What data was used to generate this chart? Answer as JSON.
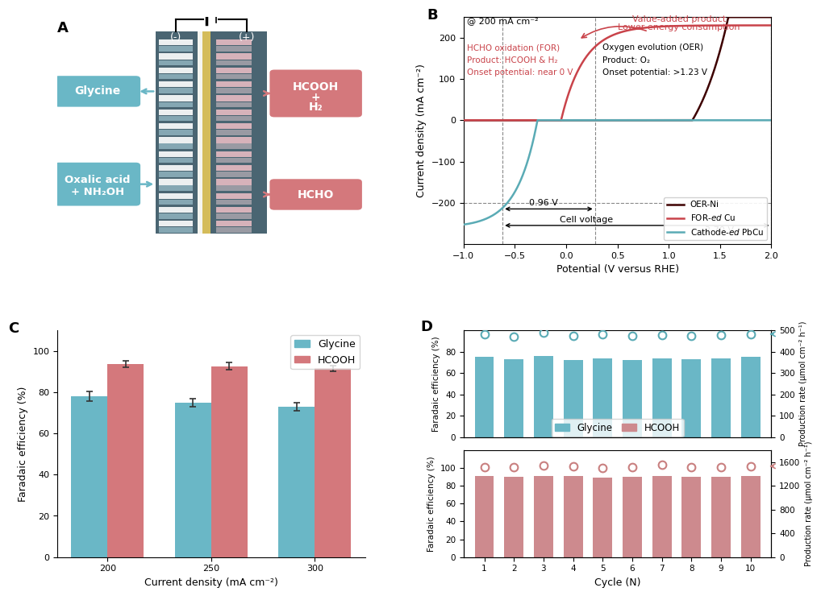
{
  "panel_B": {
    "label": "B",
    "xlim": [
      -1.0,
      2.0
    ],
    "ylim": [
      -300,
      250
    ],
    "xlabel": "Potential (V versus RHE)",
    "ylabel": "Current density (mA cm⁻²)",
    "annotation_200": "@ 200 mA cm⁻²",
    "color_OER": "#3d0000",
    "color_FOR": "#c9434a",
    "color_Cat": "#5aabb5",
    "legend_OER": "OER-Ni",
    "legend_FOR": "FOR-ed Cu",
    "legend_Cat": "Cathode-ed PbCu"
  },
  "panel_C": {
    "label": "C",
    "categories": [
      200,
      250,
      300
    ],
    "glycine_vals": [
      78.0,
      75.0,
      73.0
    ],
    "glycine_errs": [
      2.5,
      2.0,
      2.0
    ],
    "hcooh_vals": [
      93.5,
      92.5,
      91.5
    ],
    "hcooh_errs": [
      1.5,
      1.8,
      1.5
    ],
    "bar_color_glycine": "#6ab7c6",
    "bar_color_hcooh": "#d4787c",
    "xlabel": "Current density (mA cm⁻²)",
    "ylabel": "Faradaic efficiency (%)",
    "ylim": [
      0,
      110
    ],
    "yticks": [
      0,
      20,
      40,
      60,
      80,
      100
    ],
    "legend_glycine": "Glycine",
    "legend_hcooh": "HCOOH"
  },
  "panel_D": {
    "label": "D",
    "cycles": [
      1,
      2,
      3,
      4,
      5,
      6,
      7,
      8,
      9,
      10
    ],
    "glycine_fe": [
      75,
      73,
      76,
      72,
      74,
      72,
      74,
      73,
      74,
      75
    ],
    "glycine_pr": [
      480,
      470,
      490,
      475,
      480,
      472,
      478,
      473,
      479,
      482
    ],
    "hcooh_fe": [
      91,
      90,
      91,
      91,
      89,
      90,
      91,
      90,
      90,
      91
    ],
    "hcooh_pr": [
      1520,
      1510,
      1540,
      1530,
      1500,
      1520,
      1550,
      1520,
      1520,
      1530
    ],
    "bar_color_glycine": "#6ab7c6",
    "bar_color_hcooh": "#cd8a8e",
    "circle_color_glycine": "#5aabb5",
    "circle_color_hcooh": "#c98080",
    "ylabel_fe": "Faradaic efficiency (%)",
    "ylabel_pr": "Production rate (μmol cm⁻² h⁻¹)",
    "xlabel": "Cycle (N)",
    "legend_glycine": "Glycine",
    "legend_hcooh": "HCOOH",
    "glycine_ylim_fe": [
      0,
      100
    ],
    "glycine_ylim_pr": [
      0,
      500
    ],
    "glycine_yticks_fe": [
      0,
      20,
      40,
      60,
      80
    ],
    "glycine_yticks_pr": [
      0,
      100,
      200,
      300,
      400,
      500
    ],
    "hcooh_ylim_fe": [
      0,
      120
    ],
    "hcooh_ylim_pr": [
      0,
      1800
    ],
    "hcooh_yticks_fe": [
      0,
      20,
      40,
      60,
      80,
      100
    ],
    "hcooh_yticks_pr": [
      0,
      400,
      800,
      1200,
      1600
    ]
  },
  "panel_A": {
    "label": "A",
    "cell_color": "#4a6572",
    "left_bars_color": "#d8e4e8",
    "right_bars_color": "#f0c0c8",
    "membrane_color1": "#f5f0d0",
    "membrane_color2": "#e8d88a",
    "glycine_box_color": "#6ab7c6",
    "hcooh_box_color": "#d4787c",
    "ox_box_color": "#6ab7c6",
    "hcho_box_color": "#d4787c"
  }
}
